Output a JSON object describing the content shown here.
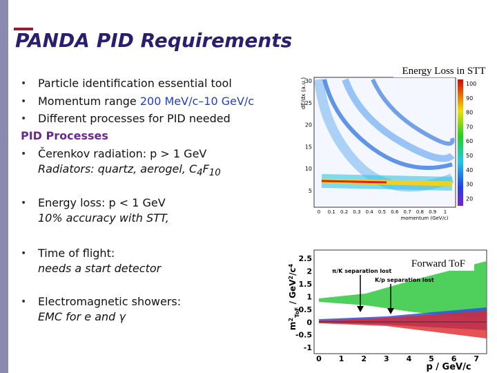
{
  "title": "PANDA PID Requirements",
  "bullet": "•",
  "bullets": [
    {
      "text": "Particle identification essential tool"
    },
    {
      "text": "Momentum range ",
      "highlight": "200 MeV/c–10 GeV/c"
    },
    {
      "text": "Different processes for PID needed"
    }
  ],
  "section": "PID Processes",
  "processes": [
    {
      "title": "Čerenkov radiation: p > 1 GeV",
      "detail": {
        "text": "Radiators: quartz, aerogel, ",
        "formula": [
          "C",
          "4",
          "F",
          "10"
        ]
      }
    },
    {
      "title": "Energy loss: p < 1 GeV",
      "detail": {
        "text": "10% accuracy with STT,"
      }
    },
    {
      "title": "Time of flight:",
      "detail": {
        "text": "needs a start detector"
      }
    },
    {
      "title": "Electromagnetic showers:",
      "detail": {
        "text": "EMC for e and γ"
      }
    }
  ],
  "figures": [
    {
      "caption": "Energy Loss in STT",
      "y_label": "dE/dx (a.u.)",
      "x_label": "momentum (GeV/c)",
      "yticks": [
        "30",
        "25",
        "20",
        "15",
        "10",
        "5"
      ],
      "xticks": [
        "0",
        "0.1",
        "0.2",
        "0.3",
        "0.4",
        "0.5",
        "0.6",
        "0.7",
        "0.8",
        "0.9",
        "1"
      ],
      "colorbar_ticks": [
        "100",
        "90",
        "80",
        "70",
        "60",
        "50",
        "40",
        "30",
        "20"
      ]
    },
    {
      "caption": "Forward ToF",
      "y_label": [
        "m",
        "2",
        "ToF",
        " / GeV",
        "2",
        "/c",
        "4"
      ],
      "x_label": "p / GeV/c",
      "yticks": [
        "2.5",
        "2",
        "1.5",
        "1",
        "0.5",
        "0",
        "-0.5",
        "-1"
      ],
      "xticks": [
        "0",
        "1",
        "2",
        "3",
        "4",
        "5",
        "6",
        "7"
      ],
      "annotations": [
        "π/K separation lost",
        "K/p separation lost"
      ]
    }
  ]
}
